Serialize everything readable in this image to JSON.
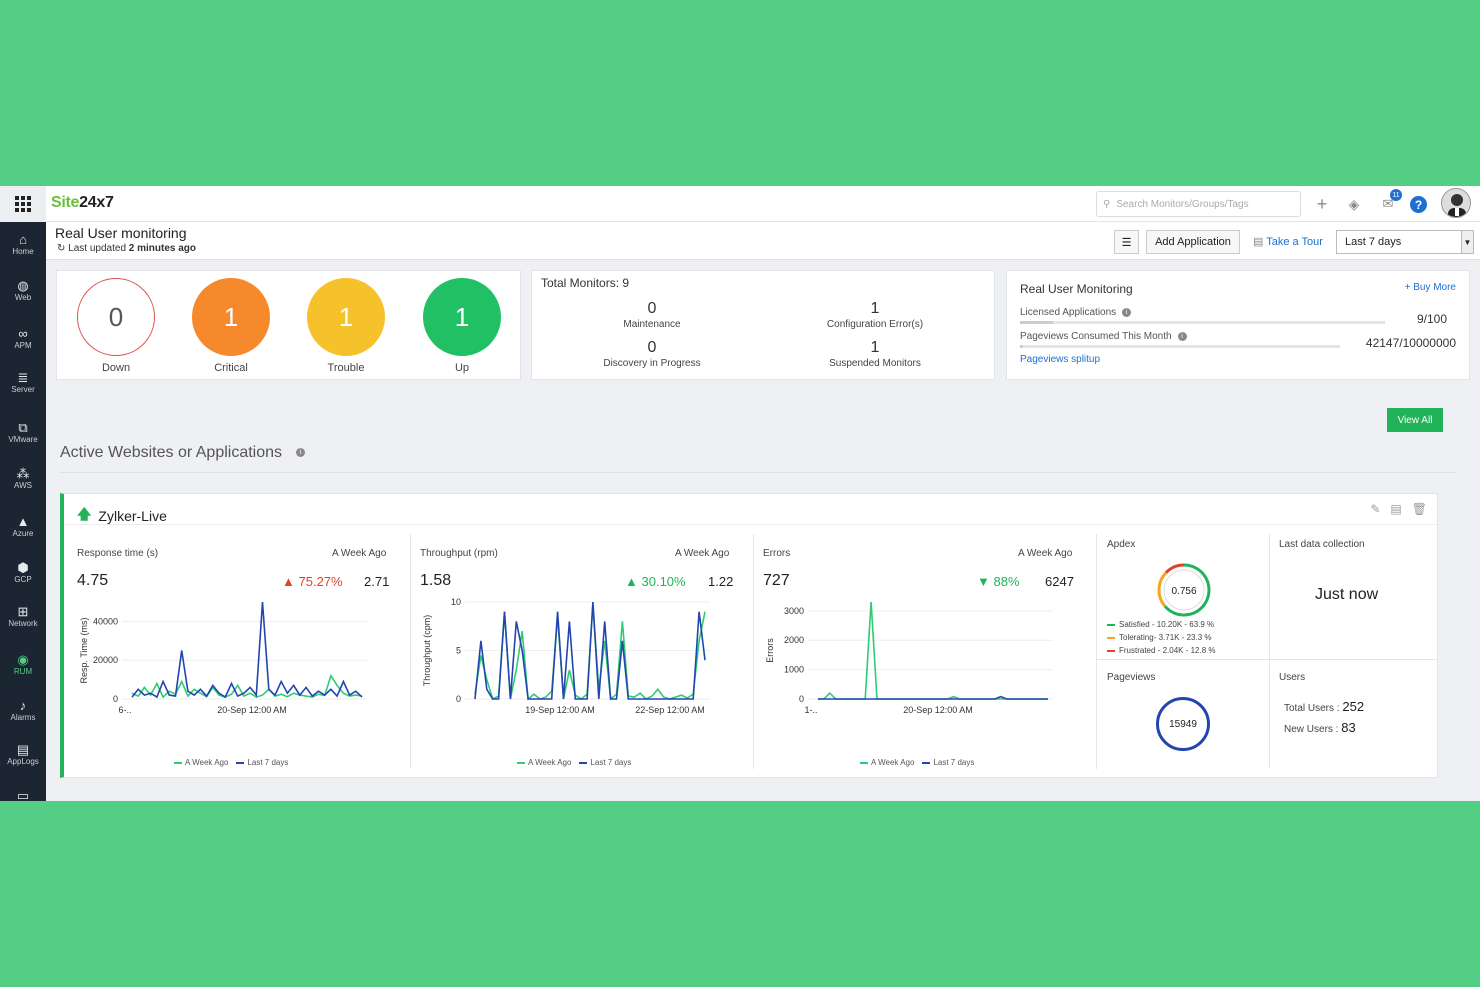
{
  "topbar": {
    "logo_part1": "Site",
    "logo_part2": "24x7",
    "search_placeholder": "Search Monitors/Groups/Tags",
    "notification_count": "11",
    "help_label": "?"
  },
  "sidebar": {
    "items": [
      {
        "label": "Home",
        "icon": "home-icon",
        "glyph": "⌂"
      },
      {
        "label": "Web",
        "icon": "globe-icon",
        "glyph": "◍"
      },
      {
        "label": "APM",
        "icon": "binoculars-icon",
        "glyph": "∞"
      },
      {
        "label": "Server",
        "icon": "server-icon",
        "glyph": "≣"
      },
      {
        "label": "VMware",
        "icon": "vmware-icon",
        "glyph": "⧉"
      },
      {
        "label": "AWS",
        "icon": "aws-icon",
        "glyph": "⁂"
      },
      {
        "label": "Azure",
        "icon": "azure-icon",
        "glyph": "▲"
      },
      {
        "label": "GCP",
        "icon": "gcp-icon",
        "glyph": "⬢"
      },
      {
        "label": "Network",
        "icon": "network-icon",
        "glyph": "⊞"
      },
      {
        "label": "RUM",
        "icon": "rum-icon",
        "glyph": "◉"
      },
      {
        "label": "Alarms",
        "icon": "bell-icon",
        "glyph": "♪"
      },
      {
        "label": "AppLogs",
        "icon": "applogs-icon",
        "glyph": "▤"
      },
      {
        "label": "",
        "icon": "monitor-icon",
        "glyph": "▭"
      }
    ]
  },
  "header": {
    "title": "Real User monitoring",
    "updated_prefix": "Last updated",
    "updated_value": "2 minutes ago",
    "add_application": "Add Application",
    "take_tour": "Take a Tour",
    "period": "Last 7 days"
  },
  "status": [
    {
      "value": "0",
      "label": "Down",
      "color": "#ffffff"
    },
    {
      "value": "1",
      "label": "Critical",
      "color": "#f5892b"
    },
    {
      "value": "1",
      "label": "Trouble",
      "color": "#f5c22b"
    },
    {
      "value": "1",
      "label": "Up",
      "color": "#21c064"
    }
  ],
  "monitors": {
    "title": "Total Monitors: 9",
    "maintenance_value": "0",
    "maintenance_label": "Maintenance",
    "config_value": "1",
    "config_label": "Configuration Error(s)",
    "discovery_value": "0",
    "discovery_label": "Discovery in Progress",
    "suspended_value": "1",
    "suspended_label": "Suspended Monitors"
  },
  "rum": {
    "title": "Real User Monitoring",
    "buy_more": "+ Buy More",
    "licensed_label": "Licensed Applications",
    "licensed_value": "9/100",
    "licensed_fraction": 0.09,
    "pageviews_label": "Pageviews Consumed This Month",
    "pageviews_value": "42147/10000000",
    "pageviews_fraction": 0.004,
    "splitup": "Pageviews splitup"
  },
  "view_all": "View All",
  "section_title": "Active Websites or Applications",
  "app_card": {
    "name": "Zylker-Live",
    "response": {
      "title": "Response time (s)",
      "ago_label": "A Week Ago",
      "value": "4.75",
      "pct": "75.27%",
      "old": "2.71"
    },
    "throughput": {
      "title": "Throughput (rpm)",
      "ago_label": "A Week Ago",
      "value": "1.58",
      "pct": "30.10%",
      "old": "1.22"
    },
    "errors": {
      "title": "Errors",
      "ago_label": "A Week Ago",
      "value": "727",
      "pct": "88%",
      "old": "6247"
    },
    "legend_week": "A Week Ago",
    "legend_last": "Last 7 days",
    "apdex_title": "Apdex",
    "apdex_value": "0.756",
    "apdex_satisfied": "Satisfied - 10.20K - 63.9 %",
    "apdex_tolerating": "Tolerating- 3.71K - 23.3 %",
    "apdex_frustrated": "Frustrated - 2.04K - 12.8 %",
    "apdex_fractions": [
      0.639,
      0.233,
      0.128
    ],
    "pageviews_title": "Pageviews",
    "pageviews_value": "15949",
    "last_collection_title": "Last data collection",
    "last_collection_value": "Just now",
    "users_title": "Users",
    "total_users_label": "Total Users :",
    "total_users_value": "252",
    "new_users_label": "New Users :",
    "new_users_value": "83"
  },
  "colors": {
    "week_ago": "#2ecc71",
    "last7": "#2345b0",
    "satisfied": "#21b35a",
    "tolerating": "#f5a623",
    "frustrated": "#e2402d"
  },
  "chart_data": [
    {
      "type": "line",
      "ylabel": "Resp. Time (ms)",
      "yticks": [
        "0",
        "20000",
        "40000"
      ],
      "ylim": [
        0,
        50000
      ],
      "xticks": [
        "6-..",
        "20-Sep 12:00 AM"
      ],
      "series": [
        {
          "name": "A Week Ago",
          "values": [
            3000,
            1500,
            6000,
            2000,
            8000,
            1000,
            4000,
            2500,
            9000,
            1500,
            5000,
            3000,
            1200,
            6000,
            2000,
            1000,
            2500,
            7000,
            1500,
            3000,
            1000,
            2000,
            5000,
            1500,
            2500,
            1200,
            3000,
            2000,
            1500,
            1000,
            2500,
            1800,
            12000,
            7000,
            3000,
            1500,
            2000,
            1500
          ]
        },
        {
          "name": "Last 7 days",
          "values": [
            1000,
            5000,
            2000,
            3000,
            1000,
            9000,
            2000,
            1500,
            25000,
            4000,
            2000,
            5000,
            1500,
            7000,
            3000,
            1000,
            8000,
            1500,
            3000,
            6000,
            2000,
            52000,
            5000,
            2000,
            9000,
            3000,
            7000,
            2000,
            6000,
            1500,
            4000,
            2000,
            5000,
            1500,
            9000,
            2000,
            4000,
            1000
          ]
        }
      ]
    },
    {
      "type": "line",
      "ylabel": "Throughput (cpm)",
      "yticks": [
        "0",
        "5",
        "10"
      ],
      "ylim": [
        0,
        10
      ],
      "xticks": [
        "19-Sep 12:00 AM",
        "22-Sep 12:00 AM"
      ],
      "series": [
        {
          "name": "A Week Ago",
          "values": [
            0.5,
            4.5,
            2,
            0,
            0.3,
            9,
            0,
            3,
            7,
            0,
            0.5,
            0,
            0.2,
            0.8,
            8.5,
            0,
            3,
            0.4,
            0,
            0.5,
            9.8,
            1,
            6,
            0,
            0.5,
            8,
            0.3,
            0.2,
            0.6,
            0,
            0.3,
            1,
            0.2,
            0,
            0.2,
            0.4,
            0.1,
            0.5,
            6,
            9
          ]
        },
        {
          "name": "Last 7 days",
          "values": [
            0,
            6,
            1,
            0,
            0,
            9,
            0,
            8,
            5,
            0,
            0,
            0,
            0,
            0,
            9,
            0,
            8,
            0,
            0,
            0,
            10,
            0,
            8,
            0,
            0,
            6,
            0,
            0,
            0,
            0,
            0,
            0,
            0,
            0,
            0,
            0,
            0,
            0,
            9,
            4
          ]
        }
      ]
    },
    {
      "type": "line",
      "ylabel": "Errors",
      "yticks": [
        "0",
        "1000",
        "2000",
        "3000"
      ],
      "ylim": [
        0,
        3300
      ],
      "xticks": [
        "1-..",
        "20-Sep 12:00 AM"
      ],
      "series": [
        {
          "name": "A Week Ago",
          "values": [
            0,
            0,
            200,
            0,
            0,
            0,
            0,
            0,
            0,
            3300,
            0,
            0,
            0,
            0,
            0,
            0,
            0,
            0,
            0,
            0,
            0,
            0,
            0,
            80,
            0,
            0,
            0,
            0,
            0,
            0,
            0,
            0,
            0,
            0,
            0,
            0,
            0,
            0,
            0,
            0
          ]
        },
        {
          "name": "Last 7 days",
          "values": [
            0,
            0,
            0,
            0,
            0,
            0,
            0,
            0,
            0,
            0,
            0,
            0,
            0,
            0,
            0,
            0,
            0,
            0,
            0,
            0,
            0,
            0,
            0,
            0,
            0,
            0,
            0,
            0,
            0,
            0,
            0,
            80,
            0,
            0,
            0,
            0,
            0,
            0,
            0,
            0
          ]
        }
      ]
    }
  ]
}
